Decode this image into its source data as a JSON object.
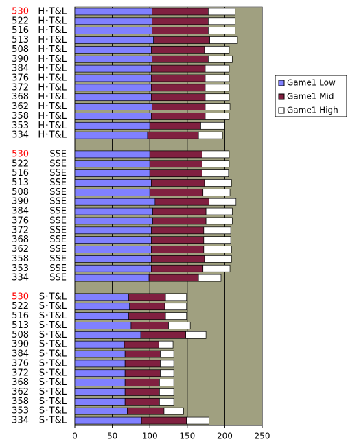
{
  "chart_data": {
    "type": "stacked_barh",
    "categories": [
      [
        "530",
        "H･T&L"
      ],
      [
        "522",
        "H･T&L"
      ],
      [
        "516",
        "H･T&L"
      ],
      [
        "513",
        "H･T&L"
      ],
      [
        "508",
        "H･T&L"
      ],
      [
        "390",
        "H･T&L"
      ],
      [
        "384",
        "H･T&L"
      ],
      [
        "376",
        "H･T&L"
      ],
      [
        "372",
        "H･T&L"
      ],
      [
        "368",
        "H･T&L"
      ],
      [
        "362",
        "H･T&L"
      ],
      [
        "358",
        "H･T&L"
      ],
      [
        "353",
        "H･T&L"
      ],
      [
        "334",
        "H･T&L"
      ],
      null,
      [
        "530",
        "SSE"
      ],
      [
        "522",
        "SSE"
      ],
      [
        "516",
        "SSE"
      ],
      [
        "513",
        "SSE"
      ],
      [
        "508",
        "SSE"
      ],
      [
        "390",
        "SSE"
      ],
      [
        "384",
        "SSE"
      ],
      [
        "376",
        "SSE"
      ],
      [
        "372",
        "SSE"
      ],
      [
        "368",
        "SSE"
      ],
      [
        "362",
        "SSE"
      ],
      [
        "358",
        "SSE"
      ],
      [
        "353",
        "SSE"
      ],
      [
        "334",
        "SSE"
      ],
      null,
      [
        "530",
        "S･T&L"
      ],
      [
        "522",
        "S･T&L"
      ],
      [
        "516",
        "S･T&L"
      ],
      [
        "513",
        "S･T&L"
      ],
      [
        "508",
        "S･T&L"
      ],
      [
        "390",
        "S･T&L"
      ],
      [
        "384",
        "S･T&L"
      ],
      [
        "376",
        "S･T&L"
      ],
      [
        "372",
        "S･T&L"
      ],
      [
        "368",
        "S･T&L"
      ],
      [
        "362",
        "S･T&L"
      ],
      [
        "358",
        "S･T&L"
      ],
      [
        "353",
        "S･T&L"
      ],
      [
        "334",
        "S･T&L"
      ]
    ],
    "highlight_category": "530",
    "highlight_color": "#ff0000",
    "series": [
      {
        "name": "Game1 Low",
        "color": "#8080ff",
        "values": [
          103,
          103,
          103,
          105,
          102,
          103,
          102,
          102,
          102,
          102,
          103,
          102,
          100,
          97,
          null,
          100,
          100,
          100,
          102,
          100,
          107,
          104,
          104,
          102,
          102,
          102,
          102,
          102,
          99,
          null,
          72,
          73,
          72,
          75,
          88,
          66,
          67,
          67,
          67,
          67,
          67,
          67,
          70,
          89
        ]
      },
      {
        "name": "Game1 Mid",
        "color": "#802040",
        "values": [
          75,
          75,
          75,
          75,
          71,
          75,
          72,
          72,
          72,
          72,
          71,
          72,
          68,
          68,
          null,
          70,
          70,
          70,
          71,
          71,
          72,
          71,
          71,
          70,
          70,
          70,
          71,
          69,
          66,
          null,
          49,
          47,
          49,
          50,
          60,
          46,
          47,
          47,
          47,
          46,
          46,
          46,
          49,
          60
        ]
      },
      {
        "name": "Game1 High",
        "color": "#ffffff",
        "values": [
          36,
          36,
          36,
          37,
          33,
          32,
          32,
          32,
          32,
          32,
          33,
          32,
          32,
          32,
          null,
          36,
          36,
          35,
          36,
          36,
          36,
          35,
          35,
          36,
          36,
          37,
          36,
          36,
          30,
          null,
          28,
          29,
          28,
          29,
          27,
          19,
          18,
          18,
          18,
          19,
          19,
          19,
          26,
          30
        ]
      }
    ],
    "xlim": [
      0,
      250
    ],
    "xticks": [
      0,
      50,
      100,
      150,
      200,
      250
    ],
    "grid": true,
    "plot_background": "#a0a080",
    "legend": "right"
  }
}
